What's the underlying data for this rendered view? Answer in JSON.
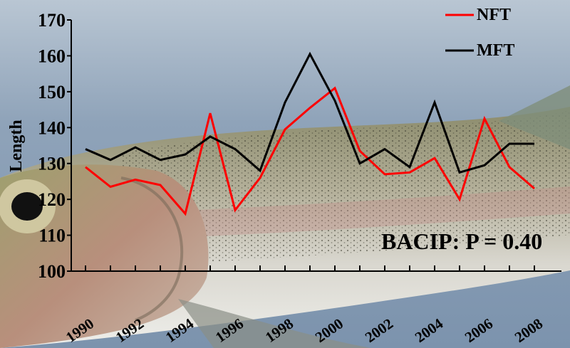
{
  "chart_data": {
    "type": "line",
    "title": "",
    "xlabel": "",
    "ylabel": "Length",
    "ylim": [
      100,
      170
    ],
    "yticks": [
      100,
      110,
      120,
      130,
      140,
      150,
      160,
      170
    ],
    "xlim": [
      1990,
      2008
    ],
    "xtick_labels": [
      "1990",
      "1992",
      "1994",
      "1996",
      "1998",
      "2000",
      "2002",
      "2004",
      "2006",
      "2008"
    ],
    "x": [
      1990,
      1991,
      1992,
      1993,
      1994,
      1995,
      1996,
      1997,
      1998,
      1999,
      2000,
      2001,
      2002,
      2003,
      2004,
      2005,
      2006,
      2007,
      2008
    ],
    "series": [
      {
        "name": "NFT",
        "color": "#ff0000",
        "values": [
          129,
          123.5,
          125.5,
          124,
          116,
          144,
          117,
          126,
          139.5,
          145.5,
          151,
          133.5,
          127,
          127.5,
          131.5,
          120,
          142.5,
          129,
          123
        ]
      },
      {
        "name": "MFT",
        "color": "#000000",
        "values": [
          134,
          131,
          134.5,
          131,
          132.5,
          137.5,
          134,
          128,
          147,
          160.5,
          147.5,
          130,
          134,
          129,
          147,
          127.5,
          129.5,
          135.5,
          135.5
        ]
      }
    ],
    "legend_position": "top-right",
    "grid": false,
    "annotation": "BACIP: P = 0.40",
    "background": "photo of a rainbow trout over blue water"
  }
}
